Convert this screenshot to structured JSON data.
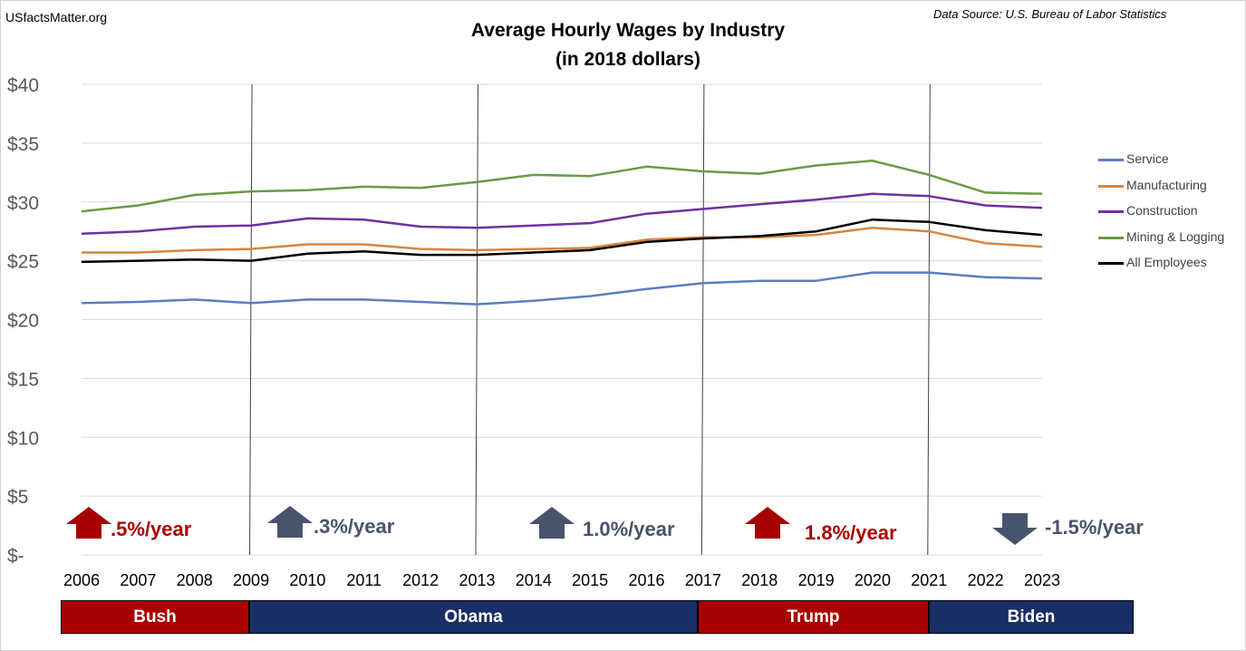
{
  "site_label": "USfactsMatter.org",
  "source_label": "Data Source: U.S. Bureau of Labor Statistics",
  "chart_data": {
    "type": "line",
    "title": "Average Hourly Wages by Industry",
    "subtitle": "(in 2018 dollars)",
    "x": [
      "2006",
      "2007",
      "2008",
      "2009",
      "2010",
      "2011",
      "2012",
      "2013",
      "2014",
      "2015",
      "2016",
      "2017",
      "2018",
      "2019",
      "2020",
      "2021",
      "2022",
      "2023"
    ],
    "ylim": [
      0,
      40
    ],
    "y_ticks": [
      {
        "value": 0,
        "label": "$-"
      },
      {
        "value": 5,
        "label": "$5"
      },
      {
        "value": 10,
        "label": "$10"
      },
      {
        "value": 15,
        "label": "$15"
      },
      {
        "value": 20,
        "label": "$20"
      },
      {
        "value": 25,
        "label": "$25"
      },
      {
        "value": 30,
        "label": "$30"
      },
      {
        "value": 35,
        "label": "$35"
      },
      {
        "value": 40,
        "label": "$40"
      }
    ],
    "grid": true,
    "legend_position": "right",
    "series": [
      {
        "name": "Service",
        "color": "#5b7ec2",
        "values": [
          21.4,
          21.5,
          21.7,
          21.4,
          21.7,
          21.7,
          21.5,
          21.3,
          21.6,
          22.0,
          22.6,
          23.1,
          23.3,
          23.3,
          24.0,
          24.0,
          23.6,
          23.5
        ]
      },
      {
        "name": "Manufacturing",
        "color": "#d9843e",
        "values": [
          25.7,
          25.7,
          25.9,
          26.0,
          26.4,
          26.4,
          26.0,
          25.9,
          26.0,
          26.1,
          26.8,
          27.0,
          27.0,
          27.2,
          27.8,
          27.5,
          26.5,
          26.2
        ]
      },
      {
        "name": "Construction",
        "color": "#7030a0",
        "values": [
          27.3,
          27.5,
          27.9,
          28.0,
          28.6,
          28.5,
          27.9,
          27.8,
          28.0,
          28.2,
          29.0,
          29.4,
          29.8,
          30.2,
          30.7,
          30.5,
          29.7,
          29.5
        ]
      },
      {
        "name": "Mining & Logging",
        "color": "#6a9a46",
        "values": [
          29.2,
          29.7,
          30.6,
          30.9,
          31.0,
          31.3,
          31.2,
          31.7,
          32.3,
          32.2,
          33.0,
          32.6,
          32.4,
          33.1,
          33.5,
          32.3,
          30.8,
          30.7
        ]
      },
      {
        "name": "All Employees",
        "color": "#000000",
        "values": [
          24.9,
          25.0,
          25.1,
          25.0,
          25.6,
          25.8,
          25.5,
          25.5,
          25.7,
          25.9,
          26.6,
          26.9,
          27.1,
          27.5,
          28.5,
          28.3,
          27.6,
          27.2
        ]
      }
    ],
    "divider_years": [
      "2009",
      "2013",
      "2017",
      "2021"
    ],
    "annotations": [
      {
        "text": ".5%/year",
        "direction": "up",
        "color": "#a80000",
        "at_year": "2006"
      },
      {
        "text": ".3%/year",
        "direction": "up",
        "color": "#47546b",
        "at_year": "2009"
      },
      {
        "text": "1.0%/year",
        "direction": "up",
        "color": "#47546b",
        "at_year": "2014"
      },
      {
        "text": "1.8%/year",
        "direction": "up",
        "color": "#a80000",
        "at_year": "2018"
      },
      {
        "text": "-1.5%/year",
        "direction": "down",
        "color": "#47546b",
        "at_year": "2022"
      }
    ],
    "eras": [
      {
        "label": "Bush",
        "color": "#a80000"
      },
      {
        "label": "Obama",
        "color": "#1a2e66"
      },
      {
        "label": "Trump",
        "color": "#a80000"
      },
      {
        "label": "Biden",
        "color": "#1a2e66"
      }
    ]
  }
}
